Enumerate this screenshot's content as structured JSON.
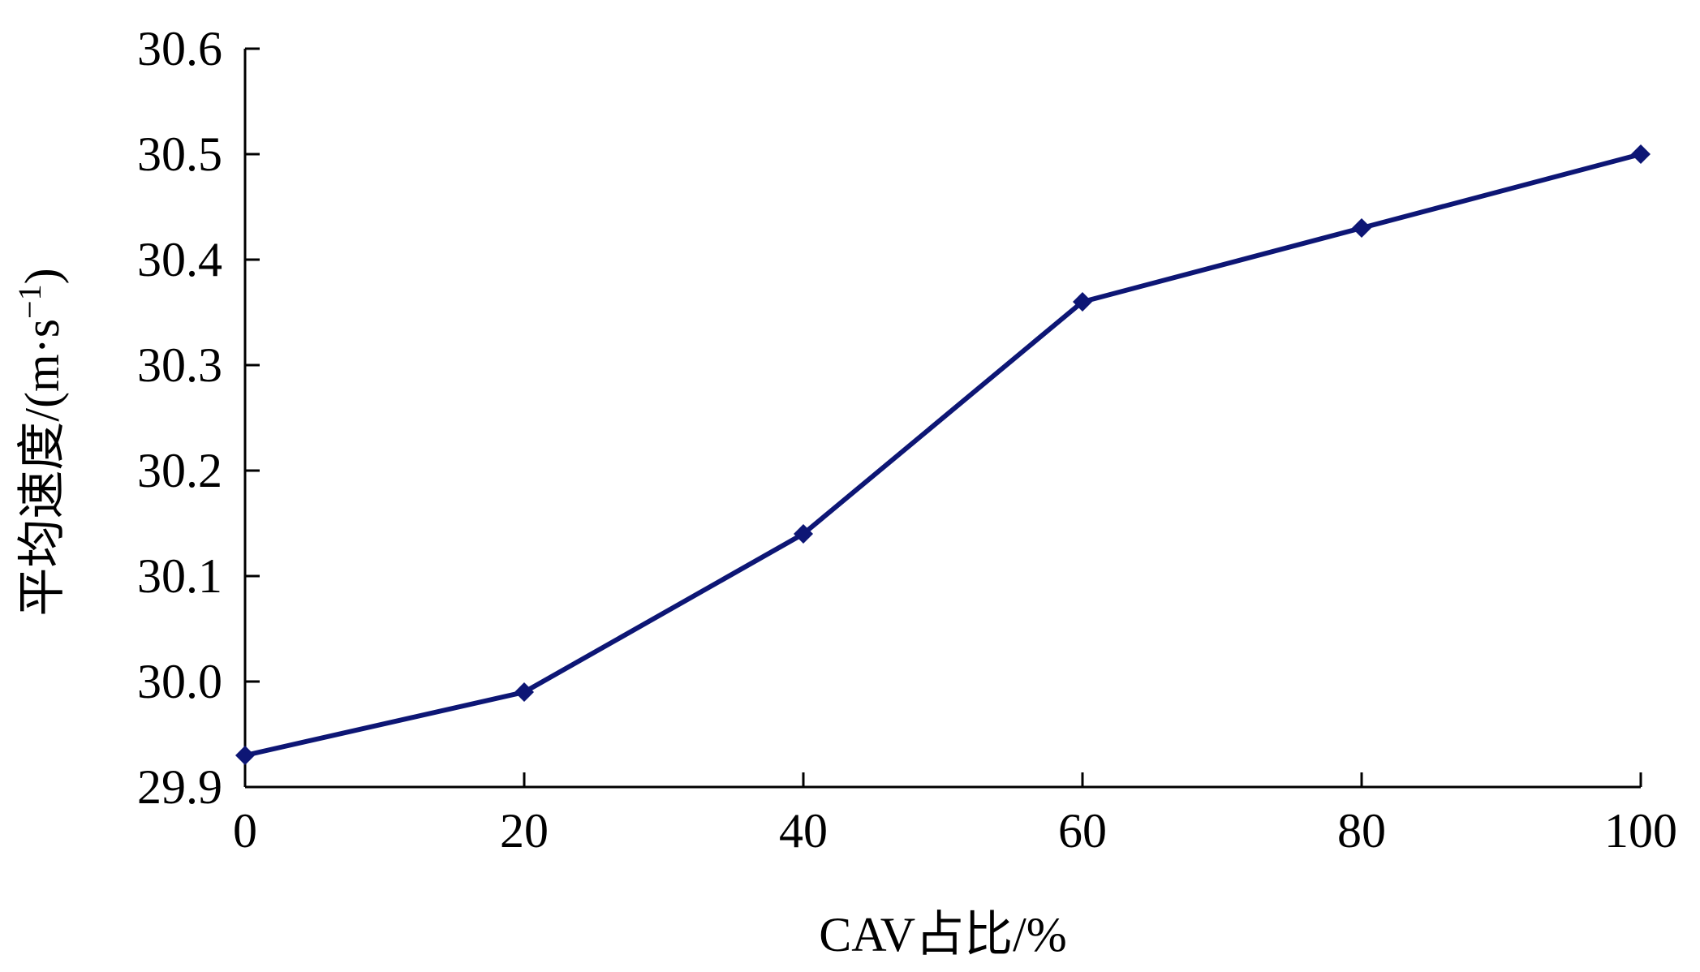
{
  "chart_data": {
    "type": "line",
    "title": "",
    "xlabel": "CAV占比/%",
    "ylabel": {
      "main": "平均速度/(m·s",
      "superscript": "−1",
      "close": ")"
    },
    "x": [
      0,
      20,
      40,
      60,
      80,
      100
    ],
    "series": [
      {
        "values": [
          29.93,
          29.99,
          30.14,
          30.36,
          30.43,
          30.5
        ],
        "color": "#0d1675",
        "marker": "diamond"
      }
    ],
    "xlim": [
      0,
      100
    ],
    "ylim": [
      29.9,
      30.6
    ],
    "xticks": [
      0,
      20,
      40,
      60,
      80,
      100
    ],
    "xtick_labels": [
      "0",
      "20",
      "40",
      "60",
      "80",
      "100"
    ],
    "yticks": [
      29.9,
      30.0,
      30.1,
      30.2,
      30.3,
      30.4,
      30.5,
      30.6
    ],
    "ytick_labels": [
      "29.9",
      "30.0",
      "30.1",
      "30.2",
      "30.3",
      "30.4",
      "30.5",
      "30.6"
    ],
    "grid": false,
    "legend": "none"
  }
}
